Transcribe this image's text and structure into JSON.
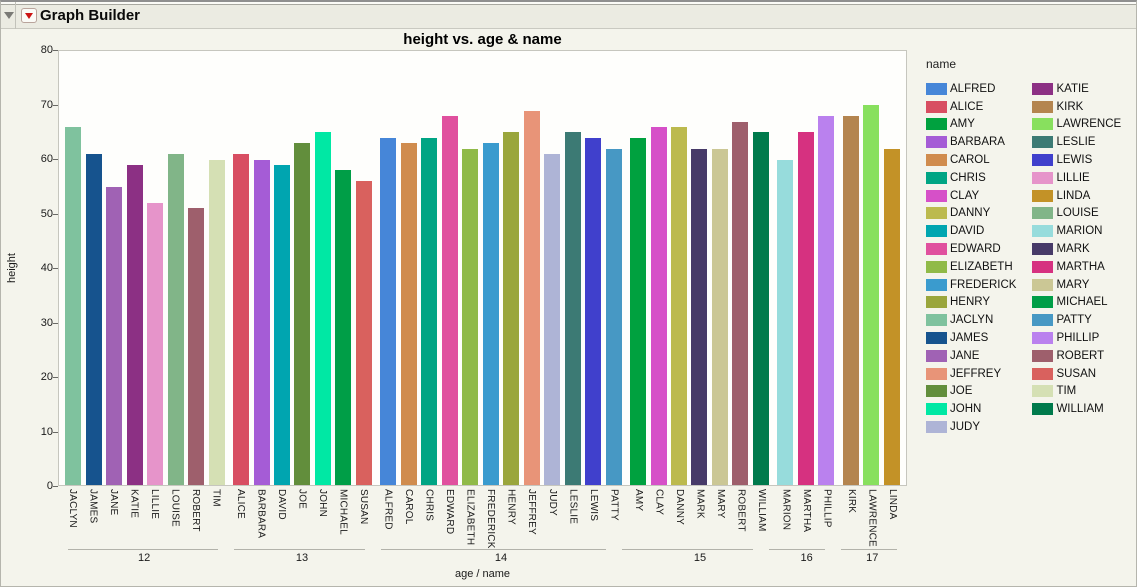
{
  "window": {
    "title": "Graph Builder"
  },
  "chart_data": {
    "type": "bar",
    "title": "height vs. age & name",
    "xlabel": "age / name",
    "ylabel": "height",
    "ylim": [
      0,
      80
    ],
    "yticks": [
      0,
      10,
      20,
      30,
      40,
      50,
      60,
      70,
      80
    ],
    "legend_title": "name",
    "grid": false,
    "legend_position": "right",
    "groups": [
      {
        "age": "12",
        "bars": [
          {
            "name": "JACLYN",
            "height": 66
          },
          {
            "name": "JAMES",
            "height": 61
          },
          {
            "name": "JANE",
            "height": 55
          },
          {
            "name": "KATIE",
            "height": 59
          },
          {
            "name": "LILLIE",
            "height": 52
          },
          {
            "name": "LOUISE",
            "height": 61
          },
          {
            "name": "ROBERT",
            "height": 51
          },
          {
            "name": "TIM",
            "height": 60
          }
        ]
      },
      {
        "age": "13",
        "bars": [
          {
            "name": "ALICE",
            "height": 61
          },
          {
            "name": "BARBARA",
            "height": 60
          },
          {
            "name": "DAVID",
            "height": 59
          },
          {
            "name": "JOE",
            "height": 63
          },
          {
            "name": "JOHN",
            "height": 65
          },
          {
            "name": "MICHAEL",
            "height": 58
          },
          {
            "name": "SUSAN",
            "height": 56
          }
        ]
      },
      {
        "age": "14",
        "bars": [
          {
            "name": "ALFRED",
            "height": 64
          },
          {
            "name": "CAROL",
            "height": 63
          },
          {
            "name": "CHRIS",
            "height": 64
          },
          {
            "name": "EDWARD",
            "height": 68
          },
          {
            "name": "ELIZABETH",
            "height": 62
          },
          {
            "name": "FREDERICK",
            "height": 63
          },
          {
            "name": "HENRY",
            "height": 65
          },
          {
            "name": "JEFFREY",
            "height": 69
          },
          {
            "name": "JUDY",
            "height": 61
          },
          {
            "name": "LESLIE",
            "height": 65
          },
          {
            "name": "LEWIS",
            "height": 64
          },
          {
            "name": "PATTY",
            "height": 62
          }
        ]
      },
      {
        "age": "15",
        "bars": [
          {
            "name": "AMY",
            "height": 64
          },
          {
            "name": "CLAY",
            "height": 66
          },
          {
            "name": "DANNY",
            "height": 66
          },
          {
            "name": "MARK",
            "height": 62
          },
          {
            "name": "MARY",
            "height": 62
          },
          {
            "name": "ROBERT",
            "height": 67
          },
          {
            "name": "WILLIAM",
            "height": 65
          }
        ]
      },
      {
        "age": "16",
        "bars": [
          {
            "name": "MARION",
            "height": 60
          },
          {
            "name": "MARTHA",
            "height": 65
          },
          {
            "name": "PHILLIP",
            "height": 68
          }
        ]
      },
      {
        "age": "17",
        "bars": [
          {
            "name": "KIRK",
            "height": 68
          },
          {
            "name": "LAWRENCE",
            "height": 70
          },
          {
            "name": "LINDA",
            "height": 62
          }
        ]
      }
    ],
    "colors": {
      "ALFRED": "#4686d8",
      "ALICE": "#d84e62",
      "AMY": "#00a13f",
      "BARBARA": "#a55cd6",
      "CAROL": "#d08c4e",
      "CHRIS": "#00a584",
      "CLAY": "#d650c8",
      "DANNY": "#bcba4e",
      "DAVID": "#00a5b0",
      "EDWARD": "#e0509e",
      "ELIZABETH": "#90ba48",
      "FREDERICK": "#3a9bce",
      "HENRY": "#9aa63c",
      "JACLYN": "#7fc29e",
      "JAMES": "#16538e",
      "JANE": "#a062b4",
      "JEFFREY": "#e89478",
      "JOE": "#628e3c",
      "JOHN": "#00e8a4",
      "JUDY": "#aeb4d6",
      "KATIE": "#8c3084",
      "KIRK": "#b4854f",
      "LAWRENCE": "#88e05e",
      "LESLIE": "#3c7a74",
      "LEWIS": "#4040cc",
      "LILLIE": "#e694ca",
      "LINDA": "#c39227",
      "LOUISE": "#81b588",
      "MARION": "#97dcdc",
      "MARK": "#473a68",
      "MARTHA": "#d63180",
      "MARY": "#cbc795",
      "MICHAEL": "#009e47",
      "PATTY": "#4798c4",
      "PHILLIP": "#ba81ee",
      "ROBERT": "#9e5f6c",
      "SUSAN": "#d9615e",
      "TIM": "#d5e0b4",
      "WILLIAM": "#007a4c"
    },
    "legend_columns": [
      [
        "ALFRED",
        "ALICE",
        "AMY",
        "BARBARA",
        "CAROL",
        "CHRIS",
        "CLAY",
        "DANNY",
        "DAVID",
        "EDWARD",
        "ELIZABETH",
        "FREDERICK",
        "HENRY",
        "JACLYN",
        "JAMES",
        "JANE",
        "JEFFREY",
        "JOE",
        "JOHN",
        "JUDY"
      ],
      [
        "KATIE",
        "KIRK",
        "LAWRENCE",
        "LESLIE",
        "LEWIS",
        "LILLIE",
        "LINDA",
        "LOUISE",
        "MARION",
        "MARK",
        "MARTHA",
        "MARY",
        "MICHAEL",
        "PATTY",
        "PHILLIP",
        "ROBERT",
        "SUSAN",
        "TIM",
        "WILLIAM"
      ]
    ]
  }
}
